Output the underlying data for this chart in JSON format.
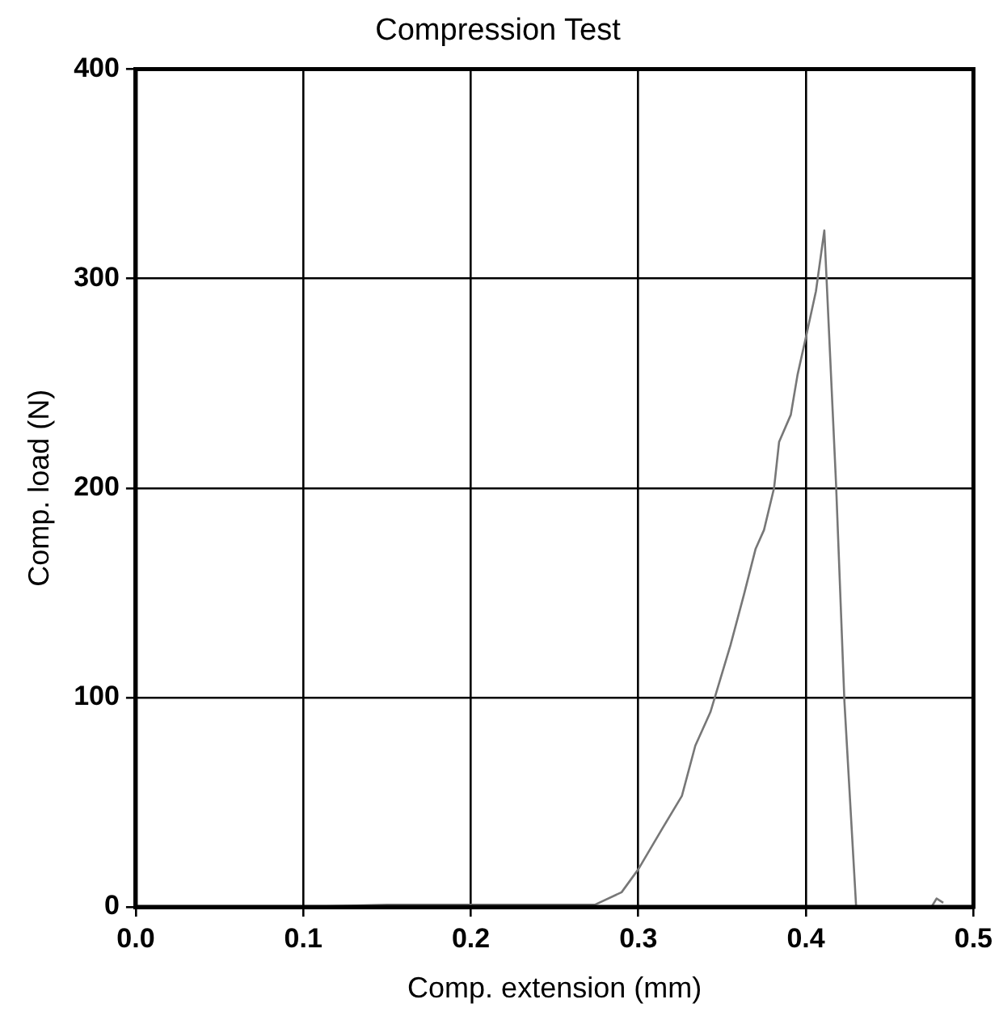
{
  "chart_data": {
    "type": "line",
    "title": "Compression Test",
    "xlabel": "Comp. extension (mm)",
    "ylabel": "Comp. load (N)",
    "series": [
      {
        "color": "#777777",
        "x": [
          0,
          0.1,
          0.15,
          0.2,
          0.25,
          0.274,
          0.29,
          0.3,
          0.314,
          0.326,
          0.334,
          0.343,
          0.355,
          0.363,
          0.37,
          0.375,
          0.381,
          0.384,
          0.391,
          0.395,
          0.4,
          0.406,
          0.411,
          0.418,
          0.423,
          0.43,
          0.475,
          0.478,
          0.482
        ],
        "values": [
          0,
          0,
          1,
          1,
          1,
          1,
          7,
          18,
          37,
          53,
          77,
          93,
          125,
          149,
          171,
          180,
          200,
          222,
          235,
          254,
          272,
          294,
          323,
          202,
          98,
          0,
          0,
          4,
          2
        ]
      }
    ],
    "xlim": [
      0,
      0.5
    ],
    "xticks": [
      {
        "value": 0,
        "label": "0.0"
      },
      0.1,
      0.2,
      0.3,
      0.4,
      0.5
    ],
    "ylim": [
      0,
      400
    ],
    "yticks": [
      0,
      100,
      200,
      300,
      400
    ],
    "grid": true,
    "legend": false,
    "marker": "none",
    "line_style": "solid"
  }
}
